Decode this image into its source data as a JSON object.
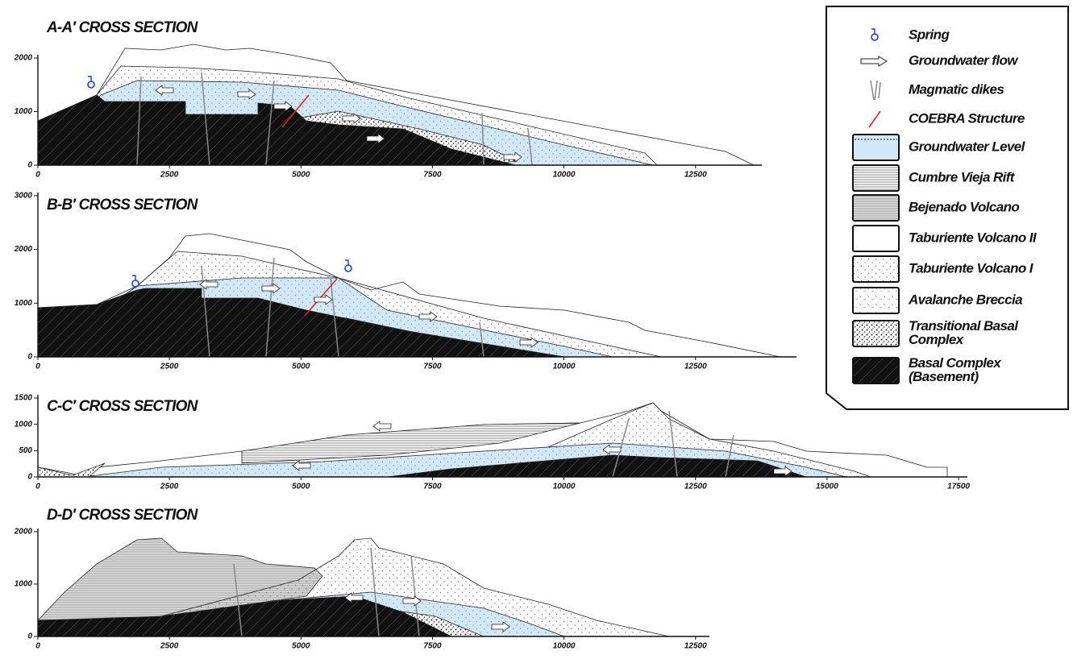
{
  "panels": [
    {
      "title": "A-A′ CROSS SECTION",
      "yticks": [
        0,
        1000,
        2000
      ],
      "xticks": [
        0,
        2500,
        5000,
        7500,
        10000,
        12500
      ]
    },
    {
      "title": "B-B′ CROSS SECTION",
      "yticks": [
        0,
        1000,
        2000,
        3000
      ],
      "xticks": [
        0,
        2500,
        5000,
        7500,
        10000,
        12500
      ]
    },
    {
      "title": "C-C′ CROSS SECTION",
      "yticks": [
        0,
        500,
        1000,
        1500
      ],
      "xticks": [
        0,
        2500,
        5000,
        7500,
        10000,
        12500,
        15000,
        17500
      ]
    },
    {
      "title": "D-D′ CROSS SECTION",
      "yticks": [
        0,
        1000,
        2000
      ],
      "xticks": [
        0,
        2500,
        5000,
        7500,
        10000,
        12500
      ]
    }
  ],
  "legend": [
    {
      "label": [
        "Spring"
      ]
    },
    {
      "label": [
        "Groundwater flow"
      ]
    },
    {
      "label": [
        "Magmatic dikes"
      ]
    },
    {
      "label": [
        "COEBRA Structure"
      ]
    },
    {
      "label": [
        "Groundwater Level"
      ]
    },
    {
      "label": [
        "Cumbre Vieja Rift"
      ]
    },
    {
      "label": [
        "Bejenado Volcano"
      ]
    },
    {
      "label": [
        "Taburiente Volcano II"
      ]
    },
    {
      "label": [
        "Taburiente Volcano I"
      ]
    },
    {
      "label": [
        "Avalanche Breccia"
      ]
    },
    {
      "label": [
        "Transitional Basal",
        "Complex"
      ]
    },
    {
      "label": [
        "Basal Complex",
        "(Basement)"
      ]
    }
  ]
}
